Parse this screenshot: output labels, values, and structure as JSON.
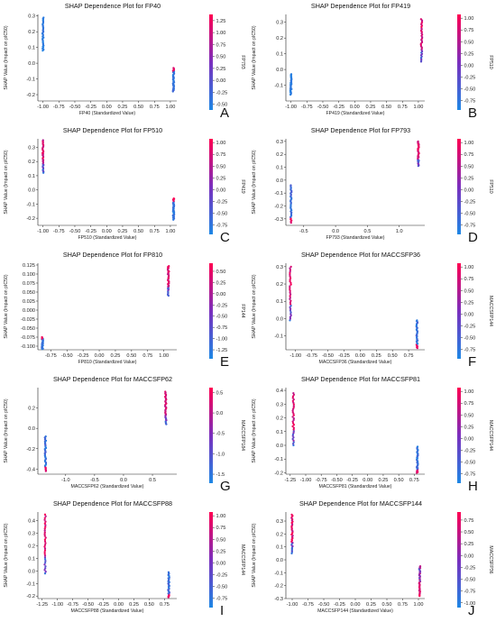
{
  "chart_data": [
    {
      "type": "scatter",
      "panel_letter": "A",
      "title": "SHAP Dependence Plot for FP40",
      "xlabel": "FP40 (Standardized Value)",
      "ylabel": "SHAP Value (Impact on pIC50)",
      "colorbar_label": "FP793",
      "xlim": [
        -1.08,
        1.1
      ],
      "ylim": [
        -0.24,
        0.31
      ],
      "x_ticks": [
        -1.0,
        -0.75,
        -0.5,
        -0.25,
        0.0,
        0.25,
        0.5,
        0.75,
        1.0
      ],
      "x_tick_labels": [
        "-1.00",
        "-0.75",
        "-0.50",
        "-0.25",
        "0.00",
        "0.25",
        "0.50",
        "0.75",
        "1.00"
      ],
      "y_ticks": [
        -0.2,
        -0.1,
        0.0,
        0.1,
        0.2,
        0.3
      ],
      "y_tick_labels": [
        "-0.2",
        "-0.1",
        "0.0",
        "0.1",
        "0.2",
        "0.3"
      ],
      "cbar_ticks": [
        1.25,
        1.0,
        0.75,
        0.5,
        0.25,
        0.0,
        -0.25,
        -0.5
      ],
      "cbar_tick_labels": [
        "1.25",
        "1.00",
        "0.75",
        "0.50",
        "0.25",
        "0.00",
        "-0.25",
        "-0.50"
      ],
      "cbar_range": [
        -0.62,
        1.38
      ],
      "groups": [
        {
          "x": -1.0,
          "y_min": 0.08,
          "y_max": 0.29,
          "color": "blue"
        },
        {
          "x": 1.05,
          "y_min": -0.18,
          "y_max": -0.03,
          "color": "blue_with_red_top"
        }
      ]
    },
    {
      "type": "scatter",
      "panel_letter": "B",
      "title": "SHAP Dependence Plot for FP419",
      "xlabel": "FP419 (Standardized Value)",
      "ylabel": "SHAP Value (Impact on pIC50)",
      "colorbar_label": "FP510",
      "xlim": [
        -1.08,
        1.1
      ],
      "ylim": [
        -0.2,
        0.35
      ],
      "x_ticks": [
        -1.0,
        -0.75,
        -0.5,
        -0.25,
        0.0,
        0.25,
        0.5,
        0.75,
        1.0
      ],
      "x_tick_labels": [
        "-1.00",
        "-0.75",
        "-0.50",
        "-0.25",
        "0.00",
        "0.25",
        "0.50",
        "0.75",
        "1.00"
      ],
      "y_ticks": [
        -0.1,
        0.0,
        0.1,
        0.2,
        0.3
      ],
      "y_tick_labels": [
        "-0.1",
        "0.0",
        "0.1",
        "0.2",
        "0.3"
      ],
      "cbar_ticks": [
        1.0,
        0.75,
        0.5,
        0.25,
        0.0,
        -0.25,
        -0.5,
        -0.75
      ],
      "cbar_tick_labels": [
        "1.00",
        "0.75",
        "0.50",
        "0.25",
        "0.00",
        "-0.25",
        "-0.50",
        "-0.75"
      ],
      "cbar_range": [
        -0.95,
        1.08
      ],
      "groups": [
        {
          "x": -1.0,
          "y_min": -0.16,
          "y_max": -0.03,
          "color": "blue"
        },
        {
          "x": 1.05,
          "y_min": 0.05,
          "y_max": 0.32,
          "color": "red_mix"
        }
      ]
    },
    {
      "type": "scatter",
      "panel_letter": "C",
      "title": "SHAP Dependence Plot for FP510",
      "xlabel": "FP510 (Standardized Value)",
      "ylabel": "SHAP Value (Impact on pIC50)",
      "colorbar_label": "FP419",
      "xlim": [
        -1.08,
        1.1
      ],
      "ylim": [
        -0.25,
        0.36
      ],
      "x_ticks": [
        -1.0,
        -0.75,
        -0.5,
        -0.25,
        0.0,
        0.25,
        0.5,
        0.75,
        1.0
      ],
      "x_tick_labels": [
        "-1.00",
        "-0.75",
        "-0.50",
        "-0.25",
        "0.00",
        "0.25",
        "0.50",
        "0.75",
        "1.00"
      ],
      "y_ticks": [
        -0.2,
        -0.1,
        0.0,
        0.1,
        0.2,
        0.3
      ],
      "y_tick_labels": [
        "-0.2",
        "-0.1",
        "0.0",
        "0.1",
        "0.2",
        "0.3"
      ],
      "cbar_ticks": [
        1.0,
        0.75,
        0.5,
        0.25,
        0.0,
        -0.25,
        -0.5,
        -0.75
      ],
      "cbar_tick_labels": [
        "1.00",
        "0.75",
        "0.50",
        "0.25",
        "0.00",
        "-0.25",
        "-0.50",
        "-0.75"
      ],
      "cbar_range": [
        -0.95,
        1.08
      ],
      "groups": [
        {
          "x": -1.0,
          "y_min": 0.12,
          "y_max": 0.35,
          "color": "red_mix"
        },
        {
          "x": 1.05,
          "y_min": -0.21,
          "y_max": -0.06,
          "color": "blue_with_red_top"
        }
      ]
    },
    {
      "type": "scatter",
      "panel_letter": "D",
      "title": "SHAP Dependence Plot for FP793",
      "xlabel": "FP793 (Standardized Value)",
      "ylabel": "SHAP Value (Impact on pIC50)",
      "colorbar_label": "FP510",
      "xlim": [
        -0.78,
        1.4
      ],
      "ylim": [
        -0.35,
        0.32
      ],
      "x_ticks": [
        -0.5,
        0.0,
        0.5,
        1.0
      ],
      "x_tick_labels": [
        "-0.5",
        "0.0",
        "0.5",
        "1.0"
      ],
      "y_ticks": [
        -0.3,
        -0.2,
        -0.1,
        0.0,
        0.1,
        0.2,
        0.3
      ],
      "y_tick_labels": [
        "-0.3",
        "-0.2",
        "-0.1",
        "0.0",
        "0.1",
        "0.2",
        "0.3"
      ],
      "cbar_ticks": [
        1.0,
        0.75,
        0.5,
        0.25,
        0.0,
        -0.25,
        -0.5,
        -0.75
      ],
      "cbar_tick_labels": [
        "1.00",
        "0.75",
        "0.50",
        "0.25",
        "0.00",
        "-0.25",
        "-0.50",
        "-0.75"
      ],
      "cbar_range": [
        -0.95,
        1.08
      ],
      "groups": [
        {
          "x": -0.7,
          "y_min": -0.33,
          "y_max": -0.04,
          "color": "blue_with_red_bottom"
        },
        {
          "x": 1.3,
          "y_min": 0.11,
          "y_max": 0.3,
          "color": "red_mix"
        }
      ]
    },
    {
      "type": "scatter",
      "panel_letter": "E",
      "title": "SHAP Dependence Plot for FP810",
      "xlabel": "FP810 (Standardized Value)",
      "ylabel": "SHAP Value (Impact on pIC50)",
      "colorbar_label": "FP144",
      "xlim": [
        -0.95,
        1.2
      ],
      "ylim": [
        -0.11,
        0.13
      ],
      "x_ticks": [
        -0.75,
        -0.5,
        -0.25,
        0.0,
        0.25,
        0.5,
        0.75,
        1.0
      ],
      "x_tick_labels": [
        "-0.75",
        "-0.50",
        "-0.25",
        "0.00",
        "0.25",
        "0.50",
        "0.75",
        "1.00"
      ],
      "y_ticks": [
        -0.1,
        -0.075,
        -0.05,
        -0.025,
        0.0,
        0.025,
        0.05,
        0.075,
        0.1,
        0.125
      ],
      "y_tick_labels": [
        "-0.100",
        "-0.075",
        "-0.050",
        "-0.025",
        "0.000",
        "0.025",
        "0.050",
        "0.075",
        "0.100",
        "0.125"
      ],
      "cbar_ticks": [
        0.5,
        0.25,
        0.0,
        -0.25,
        -0.5,
        -0.75,
        -1.0,
        -1.25
      ],
      "cbar_tick_labels": [
        "0.50",
        "0.25",
        "0.00",
        "-0.25",
        "-0.50",
        "-0.75",
        "-1.00",
        "-1.25"
      ],
      "cbar_range": [
        -1.45,
        0.68
      ],
      "groups": [
        {
          "x": -0.88,
          "y_min": -0.108,
          "y_max": -0.075,
          "color": "blue_with_red_top"
        },
        {
          "x": 1.07,
          "y_min": 0.04,
          "y_max": 0.122,
          "color": "red_mix"
        }
      ]
    },
    {
      "type": "scatter",
      "panel_letter": "F",
      "title": "SHAP Dependence Plot for MACCSFP36",
      "xlabel": "MACCSFP36 (Standardized Value)",
      "ylabel": "SHAP Value (Impact on pIC50)",
      "colorbar_label": "MACCSFP144",
      "xlim": [
        -1.15,
        1.0
      ],
      "ylim": [
        -0.18,
        0.32
      ],
      "x_ticks": [
        -1.0,
        -0.75,
        -0.5,
        -0.25,
        0.0,
        0.25,
        0.5,
        0.75
      ],
      "x_tick_labels": [
        "-1.00",
        "-0.75",
        "-0.50",
        "-0.25",
        "0.00",
        "0.25",
        "0.50",
        "0.75"
      ],
      "y_ticks": [
        -0.1,
        0.0,
        0.1,
        0.2,
        0.3
      ],
      "y_tick_labels": [
        "-0.1",
        "0.0",
        "0.1",
        "0.2",
        "0.3"
      ],
      "cbar_ticks": [
        1.0,
        0.75,
        0.5,
        0.25,
        0.0,
        -0.25,
        -0.5,
        -0.75
      ],
      "cbar_tick_labels": [
        "1.00",
        "0.75",
        "0.50",
        "0.25",
        "0.00",
        "-0.25",
        "-0.50",
        "-0.75"
      ],
      "cbar_range": [
        -0.95,
        1.08
      ],
      "groups": [
        {
          "x": -1.08,
          "y_min": -0.01,
          "y_max": 0.3,
          "color": "red_mix"
        },
        {
          "x": 0.88,
          "y_min": -0.17,
          "y_max": -0.01,
          "color": "blue_with_red_bottom"
        }
      ]
    },
    {
      "type": "scatter",
      "panel_letter": "G",
      "title": "SHAP Dependence Plot for MACCSFP62",
      "xlabel": "MACCSFP62 (Standardized Value)",
      "ylabel": "SHAP Value (Impact on pIC50)",
      "colorbar_label": "MACCSFP184",
      "xlim": [
        -1.48,
        0.92
      ],
      "ylim": [
        -0.45,
        0.4
      ],
      "x_ticks": [
        -1.0,
        -0.5,
        0.0,
        0.5
      ],
      "x_tick_labels": [
        "-1.0",
        "-0.5",
        "0.0",
        "0.5"
      ],
      "y_ticks": [
        -0.4,
        -0.2,
        0.0,
        0.2
      ],
      "y_tick_labels": [
        "-0.4",
        "-0.2",
        "0.0",
        "0.2"
      ],
      "cbar_ticks": [
        0.5,
        0.0,
        -0.5,
        -1.0,
        -1.5
      ],
      "cbar_tick_labels": [
        "0.5",
        "0.0",
        "-0.5",
        "-1.0",
        "-1.5"
      ],
      "cbar_range": [
        -1.72,
        0.62
      ],
      "groups": [
        {
          "x": -1.35,
          "y_min": -0.42,
          "y_max": -0.08,
          "color": "blue_with_red_bottom"
        },
        {
          "x": 0.73,
          "y_min": 0.04,
          "y_max": 0.36,
          "color": "red_mix"
        }
      ]
    },
    {
      "type": "scatter",
      "panel_letter": "H",
      "title": "SHAP Dependence Plot for MACCSFP81",
      "xlabel": "MACCSFP81 (Standardized Value)",
      "ylabel": "SHAP Value (Impact on pIC50)",
      "colorbar_label": "MACCSFP144",
      "xlim": [
        -1.32,
        0.92
      ],
      "ylim": [
        -0.21,
        0.42
      ],
      "x_ticks": [
        -1.25,
        -1.0,
        -0.75,
        -0.5,
        -0.25,
        0.0,
        0.25,
        0.5,
        0.75
      ],
      "x_tick_labels": [
        "-1.25",
        "-1.00",
        "-0.75",
        "-0.50",
        "-0.25",
        "0.00",
        "0.25",
        "0.50",
        "0.75"
      ],
      "y_ticks": [
        -0.2,
        -0.1,
        0.0,
        0.1,
        0.2,
        0.3,
        0.4
      ],
      "y_tick_labels": [
        "-0.2",
        "-0.1",
        "0.0",
        "0.1",
        "0.2",
        "0.3",
        "0.4"
      ],
      "cbar_ticks": [
        1.0,
        0.75,
        0.5,
        0.25,
        0.0,
        -0.25,
        -0.5,
        -0.75
      ],
      "cbar_tick_labels": [
        "1.00",
        "0.75",
        "0.50",
        "0.25",
        "0.00",
        "-0.25",
        "-0.50",
        "-0.75"
      ],
      "cbar_range": [
        -0.95,
        1.08
      ],
      "groups": [
        {
          "x": -1.2,
          "y_min": 0.0,
          "y_max": 0.38,
          "color": "red_mix"
        },
        {
          "x": 0.8,
          "y_min": -0.2,
          "y_max": -0.01,
          "color": "blue_with_red_bottom"
        }
      ]
    },
    {
      "type": "scatter",
      "panel_letter": "I",
      "title": "SHAP Dependence Plot for MACCSFP88",
      "xlabel": "MACCSFP88 (Standardized Value)",
      "ylabel": "SHAP Value (Impact on pIC50)",
      "colorbar_label": "MACCSFP144",
      "xlim": [
        -1.32,
        0.95
      ],
      "ylim": [
        -0.22,
        0.47
      ],
      "x_ticks": [
        -1.25,
        -1.0,
        -0.75,
        -0.5,
        -0.25,
        0.0,
        0.25,
        0.5,
        0.75
      ],
      "x_tick_labels": [
        "-1.25",
        "-1.00",
        "-0.75",
        "-0.50",
        "-0.25",
        "0.00",
        "0.25",
        "0.50",
        "0.75"
      ],
      "y_ticks": [
        -0.2,
        -0.1,
        0.0,
        0.1,
        0.2,
        0.3,
        0.4
      ],
      "y_tick_labels": [
        "-0.2",
        "-0.1",
        "0.0",
        "0.1",
        "0.2",
        "0.3",
        "0.4"
      ],
      "cbar_ticks": [
        1.0,
        0.75,
        0.5,
        0.25,
        0.0,
        -0.25,
        -0.5,
        -0.75
      ],
      "cbar_tick_labels": [
        "1.00",
        "0.75",
        "0.50",
        "0.25",
        "0.00",
        "-0.25",
        "-0.50",
        "-0.75"
      ],
      "cbar_range": [
        -0.95,
        1.08
      ],
      "groups": [
        {
          "x": -1.2,
          "y_min": -0.02,
          "y_max": 0.45,
          "color": "red_mix"
        },
        {
          "x": 0.82,
          "y_min": -0.21,
          "y_max": -0.01,
          "color": "blue_with_red_bottom"
        }
      ]
    },
    {
      "type": "scatter",
      "panel_letter": "J",
      "title": "SHAP Dependence Plot for MACCSFP144",
      "xlabel": "MACCSFP144 (Standardized Value)",
      "ylabel": "SHAP Value (Impact on pIC50)",
      "colorbar_label": "MACCSFP36",
      "xlim": [
        -1.1,
        1.1
      ],
      "ylim": [
        -0.3,
        0.37
      ],
      "x_ticks": [
        -1.0,
        -0.75,
        -0.5,
        -0.25,
        0.0,
        0.25,
        0.5,
        0.75,
        1.0
      ],
      "x_tick_labels": [
        "-1.00",
        "-0.75",
        "-0.50",
        "-0.25",
        "0.00",
        "0.25",
        "0.50",
        "0.75",
        "1.00"
      ],
      "y_ticks": [
        -0.3,
        -0.2,
        -0.1,
        0.0,
        0.1,
        0.2,
        0.3
      ],
      "y_tick_labels": [
        "-0.3",
        "-0.2",
        "-0.1",
        "0.0",
        "0.1",
        "0.2",
        "0.3"
      ],
      "cbar_ticks": [
        0.75,
        0.5,
        0.25,
        0.0,
        -0.25,
        -0.5,
        -0.75,
        -1.0
      ],
      "cbar_tick_labels": [
        "0.75",
        "0.50",
        "0.25",
        "0.00",
        "-0.25",
        "-0.50",
        "-0.75",
        "-1.00"
      ],
      "cbar_range": [
        -1.1,
        0.92
      ],
      "groups": [
        {
          "x": -1.0,
          "y_min": 0.05,
          "y_max": 0.35,
          "color": "red_mix"
        },
        {
          "x": 1.02,
          "y_min": -0.28,
          "y_max": -0.05,
          "color": "red_mix_low"
        }
      ]
    }
  ]
}
